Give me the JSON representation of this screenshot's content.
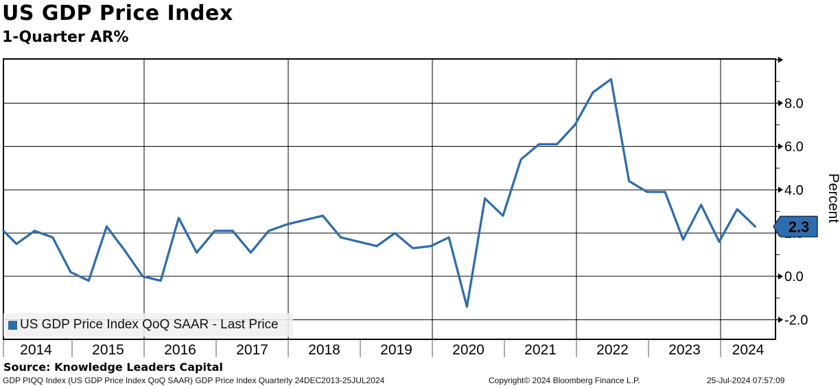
{
  "header": {
    "title": "US GDP Price Index",
    "subtitle": "1-Quarter AR%"
  },
  "legend": {
    "swatch_icon": "blue-square-series-marker",
    "label": "US GDP Price Index QoQ SAAR - Last Price"
  },
  "last_price_badge": {
    "value": "2.3"
  },
  "chart_data": {
    "type": "line",
    "title": "US GDP Price Index",
    "subtitle": "1-Quarter AR%",
    "legend_position": "bottom-left",
    "grid": true,
    "series": [
      {
        "name": "US GDP Price Index QoQ SAAR",
        "color": "#2e6dad",
        "points": [
          {
            "period": "2013 Q4",
            "value": 2.1
          },
          {
            "period": "2014 Q1",
            "value": 1.5
          },
          {
            "period": "2014 Q2",
            "value": 2.1
          },
          {
            "period": "2014 Q3",
            "value": 1.8
          },
          {
            "period": "2014 Q4",
            "value": 0.2
          },
          {
            "period": "2015 Q1",
            "value": -0.2
          },
          {
            "period": "2015 Q2",
            "value": 2.3
          },
          {
            "period": "2015 Q3",
            "value": 1.2
          },
          {
            "period": "2015 Q4",
            "value": 0.0
          },
          {
            "period": "2016 Q1",
            "value": -0.2
          },
          {
            "period": "2016 Q2",
            "value": 2.7
          },
          {
            "period": "2016 Q3",
            "value": 1.1
          },
          {
            "period": "2016 Q4",
            "value": 2.1
          },
          {
            "period": "2017 Q1",
            "value": 2.1
          },
          {
            "period": "2017 Q2",
            "value": 1.1
          },
          {
            "period": "2017 Q3",
            "value": 2.1
          },
          {
            "period": "2017 Q4",
            "value": 2.4
          },
          {
            "period": "2018 Q1",
            "value": 2.6
          },
          {
            "period": "2018 Q2",
            "value": 2.8
          },
          {
            "period": "2018 Q3",
            "value": 1.8
          },
          {
            "period": "2018 Q4",
            "value": 1.6
          },
          {
            "period": "2019 Q1",
            "value": 1.4
          },
          {
            "period": "2019 Q2",
            "value": 2.0
          },
          {
            "period": "2019 Q3",
            "value": 1.3
          },
          {
            "period": "2019 Q4",
            "value": 1.4
          },
          {
            "period": "2020 Q1",
            "value": 1.8
          },
          {
            "period": "2020 Q2",
            "value": -1.4
          },
          {
            "period": "2020 Q3",
            "value": 3.6
          },
          {
            "period": "2020 Q4",
            "value": 2.8
          },
          {
            "period": "2021 Q1",
            "value": 5.4
          },
          {
            "period": "2021 Q2",
            "value": 6.1
          },
          {
            "period": "2021 Q3",
            "value": 6.1
          },
          {
            "period": "2021 Q4",
            "value": 7.0
          },
          {
            "period": "2022 Q1",
            "value": 8.5
          },
          {
            "period": "2022 Q2",
            "value": 9.1
          },
          {
            "period": "2022 Q3",
            "value": 4.4
          },
          {
            "period": "2022 Q4",
            "value": 3.9
          },
          {
            "period": "2023 Q1",
            "value": 3.9
          },
          {
            "period": "2023 Q2",
            "value": 1.7
          },
          {
            "period": "2023 Q3",
            "value": 3.3
          },
          {
            "period": "2023 Q4",
            "value": 1.6
          },
          {
            "period": "2024 Q1",
            "value": 3.1
          },
          {
            "period": "2024 Q2",
            "value": 2.3
          }
        ]
      }
    ],
    "y_axis": {
      "label": "Percent",
      "side": "right",
      "range": [
        -2.9,
        10.0
      ],
      "major_ticks": [
        {
          "value": 10,
          "label": ""
        },
        {
          "value": 8,
          "label": "8.0"
        },
        {
          "value": 6,
          "label": "6.0"
        },
        {
          "value": 4,
          "label": "4.0"
        },
        {
          "value": 2,
          "label": "2.0"
        },
        {
          "value": 0,
          "label": "0.0"
        },
        {
          "value": -2,
          "label": "-2.0"
        }
      ],
      "minor_tick_values": [
        9,
        7,
        5,
        3,
        1,
        -1
      ]
    },
    "x_axis": {
      "tick_labels": [
        "2014",
        "2015",
        "2016",
        "2017",
        "2018",
        "2019",
        "2020",
        "2021",
        "2022",
        "2023",
        "2024"
      ],
      "gridline_years": [
        2016,
        2018,
        2020,
        2022,
        2024
      ]
    },
    "last_price": 2.3
  },
  "footer": {
    "source": "Source: Knowledge Leaders Capital",
    "security_info": "GDP PIQQ Index (US GDP Price Index QoQ SAAR) GDP Price Index  Quarterly 24DEC2013-25JUL2024",
    "copyright": "Copyright© 2024 Bloomberg Finance L.P.",
    "timestamp": "25-Jul-2024 07:57:09"
  }
}
